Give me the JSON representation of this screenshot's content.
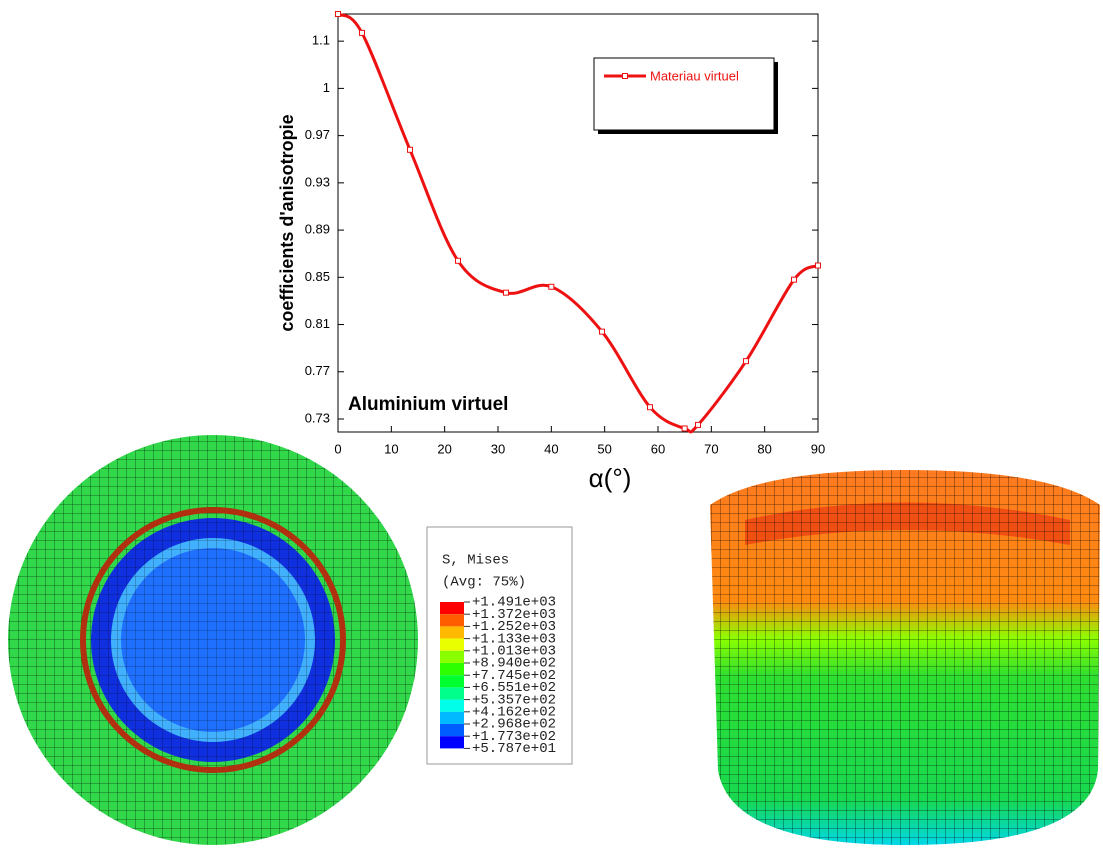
{
  "chart_data": {
    "type": "line",
    "x_label": "α(°)",
    "y_label": "coefficients d'anisotropie",
    "annotation": "Aluminium virtuel",
    "x": [
      0,
      4.5,
      13.5,
      22.5,
      31.5,
      40,
      49.5,
      58.5,
      65,
      67.5,
      76.5,
      85.5,
      90
    ],
    "series": [
      {
        "name": "Materiau virtuel",
        "color": "#ee1111",
        "values": [
          1.073,
          1.057,
          0.958,
          0.864,
          0.837,
          0.842,
          0.804,
          0.74,
          0.722,
          0.725,
          0.779,
          0.848,
          0.86
        ]
      }
    ],
    "xlim": [
      0,
      90
    ],
    "xticks": [
      0,
      10,
      20,
      30,
      40,
      50,
      60,
      70,
      80,
      90
    ],
    "ylim": [
      0.719,
      1.073
    ],
    "yticks": [
      0.73,
      0.77,
      0.81,
      0.85,
      0.89,
      0.93,
      0.97,
      {
        "value": 1.01,
        "label": "1"
      },
      {
        "value": 1.05,
        "label": "1.1"
      }
    ],
    "legend": "upper right",
    "grid": false
  },
  "contour_legend": {
    "title": "S, Mises",
    "subtitle": "(Avg: 75%)",
    "levels": [
      "+1.491e+03",
      "+1.372e+03",
      "+1.252e+03",
      "+1.133e+03",
      "+1.013e+03",
      "+8.940e+02",
      "+7.745e+02",
      "+6.551e+02",
      "+5.357e+02",
      "+4.162e+02",
      "+2.968e+02",
      "+1.773e+02",
      "+5.787e+01"
    ],
    "colors": [
      "#ff0000",
      "#ff5d00",
      "#ffb900",
      "#e9ff00",
      "#8bff00",
      "#2eff00",
      "#00ff2e",
      "#00ff8b",
      "#00ffe8",
      "#00b9ff",
      "#005dff",
      "#0000ff"
    ]
  }
}
